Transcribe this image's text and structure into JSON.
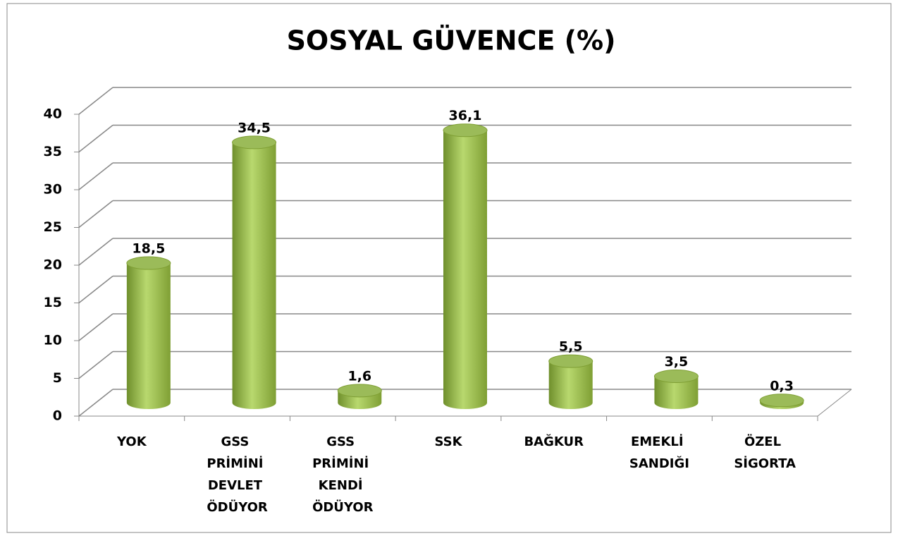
{
  "chart_data": {
    "type": "bar3d",
    "title": "SOSYAL GÜVENCE (%)",
    "categories": [
      "YOK",
      "GSS PRİMİNİ DEVLET ÖDÜYOR",
      "GSS PRİMİNİ KENDİ ÖDÜYOR",
      "SSK",
      "BAĞKUR",
      "EMEKLİ SANDIĞI",
      "ÖZEL SİGORTA"
    ],
    "values": [
      18.5,
      34.5,
      1.6,
      36.1,
      5.5,
      3.5,
      0.3
    ],
    "value_labels": [
      "18,5",
      "34,5",
      "1,6",
      "36,1",
      "5,5",
      "3,5",
      "0,3"
    ],
    "color": "#9bbb59",
    "ylim": [
      0,
      40
    ],
    "yticks": [
      0,
      5,
      10,
      15,
      20,
      25,
      30,
      35,
      40
    ],
    "grid": true
  }
}
